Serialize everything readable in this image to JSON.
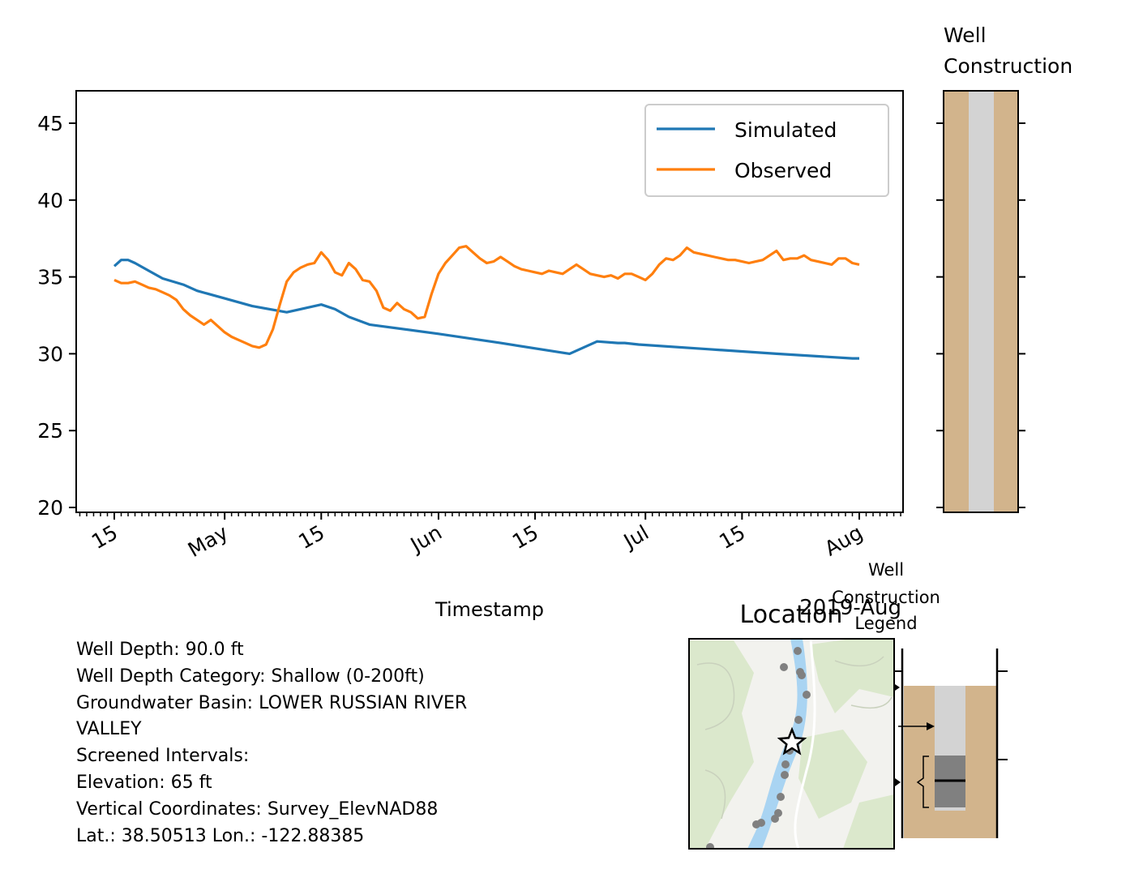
{
  "chart_data": {
    "type": "line",
    "xlabel": "Timestamp",
    "ylabel": "",
    "ylim": [
      19.7,
      47
    ],
    "y_ticks": [
      "20",
      "25",
      "30",
      "35",
      "40",
      "45"
    ],
    "x_tick_labels": [
      "15",
      "May",
      "15",
      "Jun",
      "15",
      "Jul",
      "15",
      "Aug"
    ],
    "x_offset_label": "2019-Aug",
    "legend": {
      "position": "upper right",
      "entries": [
        "Simulated",
        "Observed"
      ]
    },
    "colors": {
      "simulated": "#1f77b4",
      "observed": "#ff7f0e"
    },
    "series": [
      {
        "name": "Simulated",
        "x": [
          "2019-04-15",
          "2019-04-16",
          "2019-04-17",
          "2019-04-18",
          "2019-04-20",
          "2019-04-22",
          "2019-04-25",
          "2019-04-27",
          "2019-05-01",
          "2019-05-05",
          "2019-05-10",
          "2019-05-15",
          "2019-05-17",
          "2019-05-19",
          "2019-05-22",
          "2019-06-01",
          "2019-06-10",
          "2019-06-20",
          "2019-06-22",
          "2019-06-24",
          "2019-06-27",
          "2019-06-28",
          "2019-06-30",
          "2019-07-10",
          "2019-07-20",
          "2019-07-31",
          "2019-08-01"
        ],
        "values": [
          35.7,
          36.1,
          36.1,
          35.9,
          35.4,
          34.9,
          34.5,
          34.1,
          33.6,
          33.1,
          32.7,
          33.2,
          32.9,
          32.4,
          31.9,
          31.3,
          30.7,
          30.0,
          30.4,
          30.8,
          30.7,
          30.7,
          30.6,
          30.3,
          30.0,
          29.7,
          29.7
        ]
      },
      {
        "name": "Observed",
        "x": [
          "2019-04-15",
          "2019-04-16",
          "2019-04-17",
          "2019-04-18",
          "2019-04-19",
          "2019-04-20",
          "2019-04-21",
          "2019-04-22",
          "2019-04-23",
          "2019-04-24",
          "2019-04-25",
          "2019-04-26",
          "2019-04-27",
          "2019-04-28",
          "2019-04-29",
          "2019-04-30",
          "2019-05-01",
          "2019-05-02",
          "2019-05-03",
          "2019-05-04",
          "2019-05-05",
          "2019-05-06",
          "2019-05-07",
          "2019-05-08",
          "2019-05-09",
          "2019-05-10",
          "2019-05-11",
          "2019-05-12",
          "2019-05-13",
          "2019-05-14",
          "2019-05-15",
          "2019-05-16",
          "2019-05-17",
          "2019-05-18",
          "2019-05-19",
          "2019-05-20",
          "2019-05-21",
          "2019-05-22",
          "2019-05-23",
          "2019-05-24",
          "2019-05-25",
          "2019-05-26",
          "2019-05-27",
          "2019-05-28",
          "2019-05-29",
          "2019-05-30",
          "2019-05-31",
          "2019-06-01",
          "2019-06-02",
          "2019-06-03",
          "2019-06-04",
          "2019-06-05",
          "2019-06-06",
          "2019-06-07",
          "2019-06-08",
          "2019-06-09",
          "2019-06-10",
          "2019-06-11",
          "2019-06-12",
          "2019-06-13",
          "2019-06-14",
          "2019-06-15",
          "2019-06-16",
          "2019-06-17",
          "2019-06-18",
          "2019-06-19",
          "2019-06-20",
          "2019-06-21",
          "2019-06-22",
          "2019-06-23",
          "2019-06-24",
          "2019-06-25",
          "2019-06-26",
          "2019-06-27",
          "2019-06-28",
          "2019-06-29",
          "2019-06-30",
          "2019-07-01",
          "2019-07-02",
          "2019-07-03",
          "2019-07-04",
          "2019-07-05",
          "2019-07-06",
          "2019-07-07",
          "2019-07-08",
          "2019-07-09",
          "2019-07-10",
          "2019-07-11",
          "2019-07-12",
          "2019-07-13",
          "2019-07-14",
          "2019-07-15",
          "2019-07-16",
          "2019-07-17",
          "2019-07-18",
          "2019-07-19",
          "2019-07-20",
          "2019-07-21",
          "2019-07-22",
          "2019-07-23",
          "2019-07-24",
          "2019-07-25",
          "2019-07-26",
          "2019-07-27",
          "2019-07-28",
          "2019-07-29",
          "2019-07-30",
          "2019-07-31",
          "2019-08-01"
        ],
        "values": [
          34.8,
          34.6,
          34.6,
          34.7,
          34.5,
          34.3,
          34.2,
          34.0,
          33.8,
          33.5,
          32.9,
          32.5,
          32.2,
          31.9,
          32.2,
          31.8,
          31.4,
          31.1,
          30.9,
          30.7,
          30.5,
          30.4,
          30.6,
          31.6,
          33.2,
          34.7,
          35.3,
          35.6,
          35.8,
          35.9,
          36.6,
          36.1,
          35.3,
          35.1,
          35.9,
          35.5,
          34.8,
          34.7,
          34.1,
          33.0,
          32.8,
          33.3,
          32.9,
          32.7,
          32.3,
          32.4,
          33.9,
          35.2,
          35.9,
          36.4,
          36.9,
          37.0,
          36.6,
          36.2,
          35.9,
          36.0,
          36.3,
          36.0,
          35.7,
          35.5,
          35.4,
          35.3,
          35.2,
          35.4,
          35.3,
          35.2,
          35.5,
          35.8,
          35.5,
          35.2,
          35.1,
          35.0,
          35.1,
          34.9,
          35.2,
          35.2,
          35.0,
          34.8,
          35.2,
          35.8,
          36.2,
          36.1,
          36.4,
          36.9,
          36.6,
          36.5,
          36.4,
          36.3,
          36.2,
          36.1,
          36.1,
          36.0,
          35.9,
          36.0,
          36.1,
          36.4,
          36.7,
          36.1,
          36.2,
          36.2,
          36.4,
          36.1,
          36.0,
          35.9,
          35.8,
          36.2,
          36.2,
          35.9,
          35.8
        ]
      }
    ]
  },
  "well_panel": {
    "title_line1": "Well",
    "title_line2": "Construction",
    "colors": {
      "casing_fill": "#d2b48c",
      "bore": "#d3d3d3",
      "screen": "#808080"
    }
  },
  "location_panel": {
    "title": "Location",
    "map_colors": {
      "land": "#f2f2ee",
      "vegetation": "#dbe8cc",
      "river": "#a9d4f2",
      "points": "#808080"
    },
    "marker_icon": "star-icon"
  },
  "legend_panel": {
    "title_line1": "Well",
    "title_line2": "Construction",
    "title_line3": "Legend"
  },
  "info": {
    "lines": [
      "Well Depth: 90.0 ft",
      "Well Depth Category: Shallow (0-200ft)",
      "Groundwater Basin: LOWER RUSSIAN RIVER",
      "VALLEY",
      "Screened Intervals:",
      "Elevation: 65 ft",
      "Vertical Coordinates: Survey_ElevNAD88",
      "Lat.: 38.50513 Lon.: -122.88385"
    ]
  }
}
